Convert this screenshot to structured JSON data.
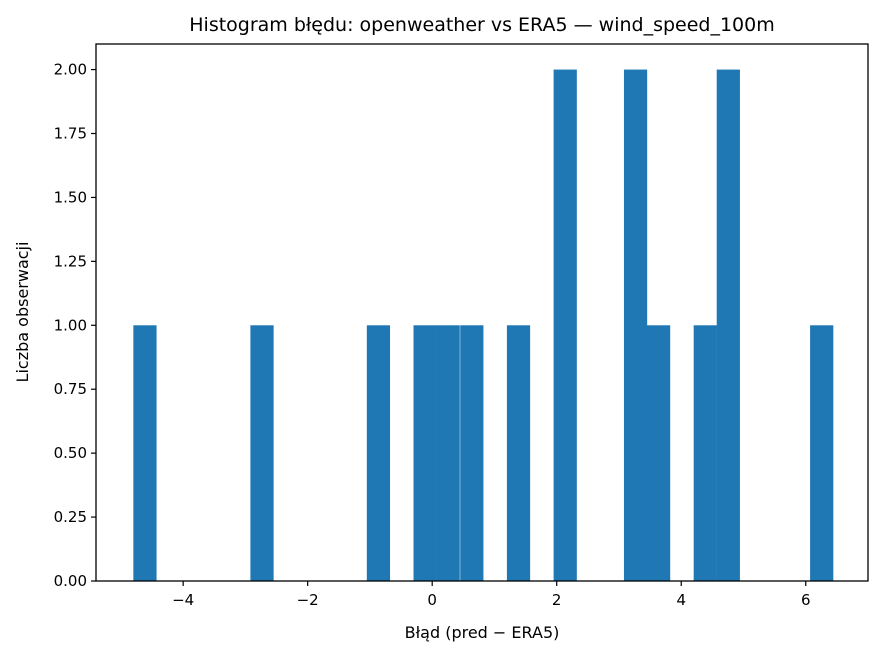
{
  "chart_data": {
    "type": "bar",
    "title": "Histogram błędu: openweather vs ERA5 — wind_speed_100m",
    "xlabel": "Błąd (pred − ERA5)",
    "ylabel": "Liczba obserwacji",
    "xlim": [
      -5.4,
      7.0
    ],
    "ylim": [
      0,
      2.1
    ],
    "bar_color": "#1f77b4",
    "bin_width": 0.373,
    "bins": [
      {
        "x0": -4.8,
        "count": 1
      },
      {
        "x0": -2.92,
        "count": 1
      },
      {
        "x0": -1.05,
        "count": 1
      },
      {
        "x0": -0.3,
        "count": 1
      },
      {
        "x0": 0.07,
        "count": 1
      },
      {
        "x0": 0.45,
        "count": 1
      },
      {
        "x0": 1.2,
        "count": 1
      },
      {
        "x0": 1.95,
        "count": 2
      },
      {
        "x0": 3.08,
        "count": 2
      },
      {
        "x0": 3.45,
        "count": 1
      },
      {
        "x0": 4.2,
        "count": 1
      },
      {
        "x0": 4.57,
        "count": 2
      },
      {
        "x0": 6.07,
        "count": 1
      }
    ],
    "x_ticks": [
      -4,
      -2,
      0,
      2,
      4,
      6
    ],
    "x_tick_labels": [
      "−4",
      "−2",
      "0",
      "2",
      "4",
      "6"
    ],
    "y_ticks": [
      0,
      0.25,
      0.5,
      0.75,
      1.0,
      1.25,
      1.5,
      1.75,
      2.0
    ],
    "y_tick_labels": [
      "0.00",
      "0.25",
      "0.50",
      "0.75",
      "1.00",
      "1.25",
      "1.50",
      "1.75",
      "2.00"
    ],
    "grid": false,
    "legend": "none"
  }
}
